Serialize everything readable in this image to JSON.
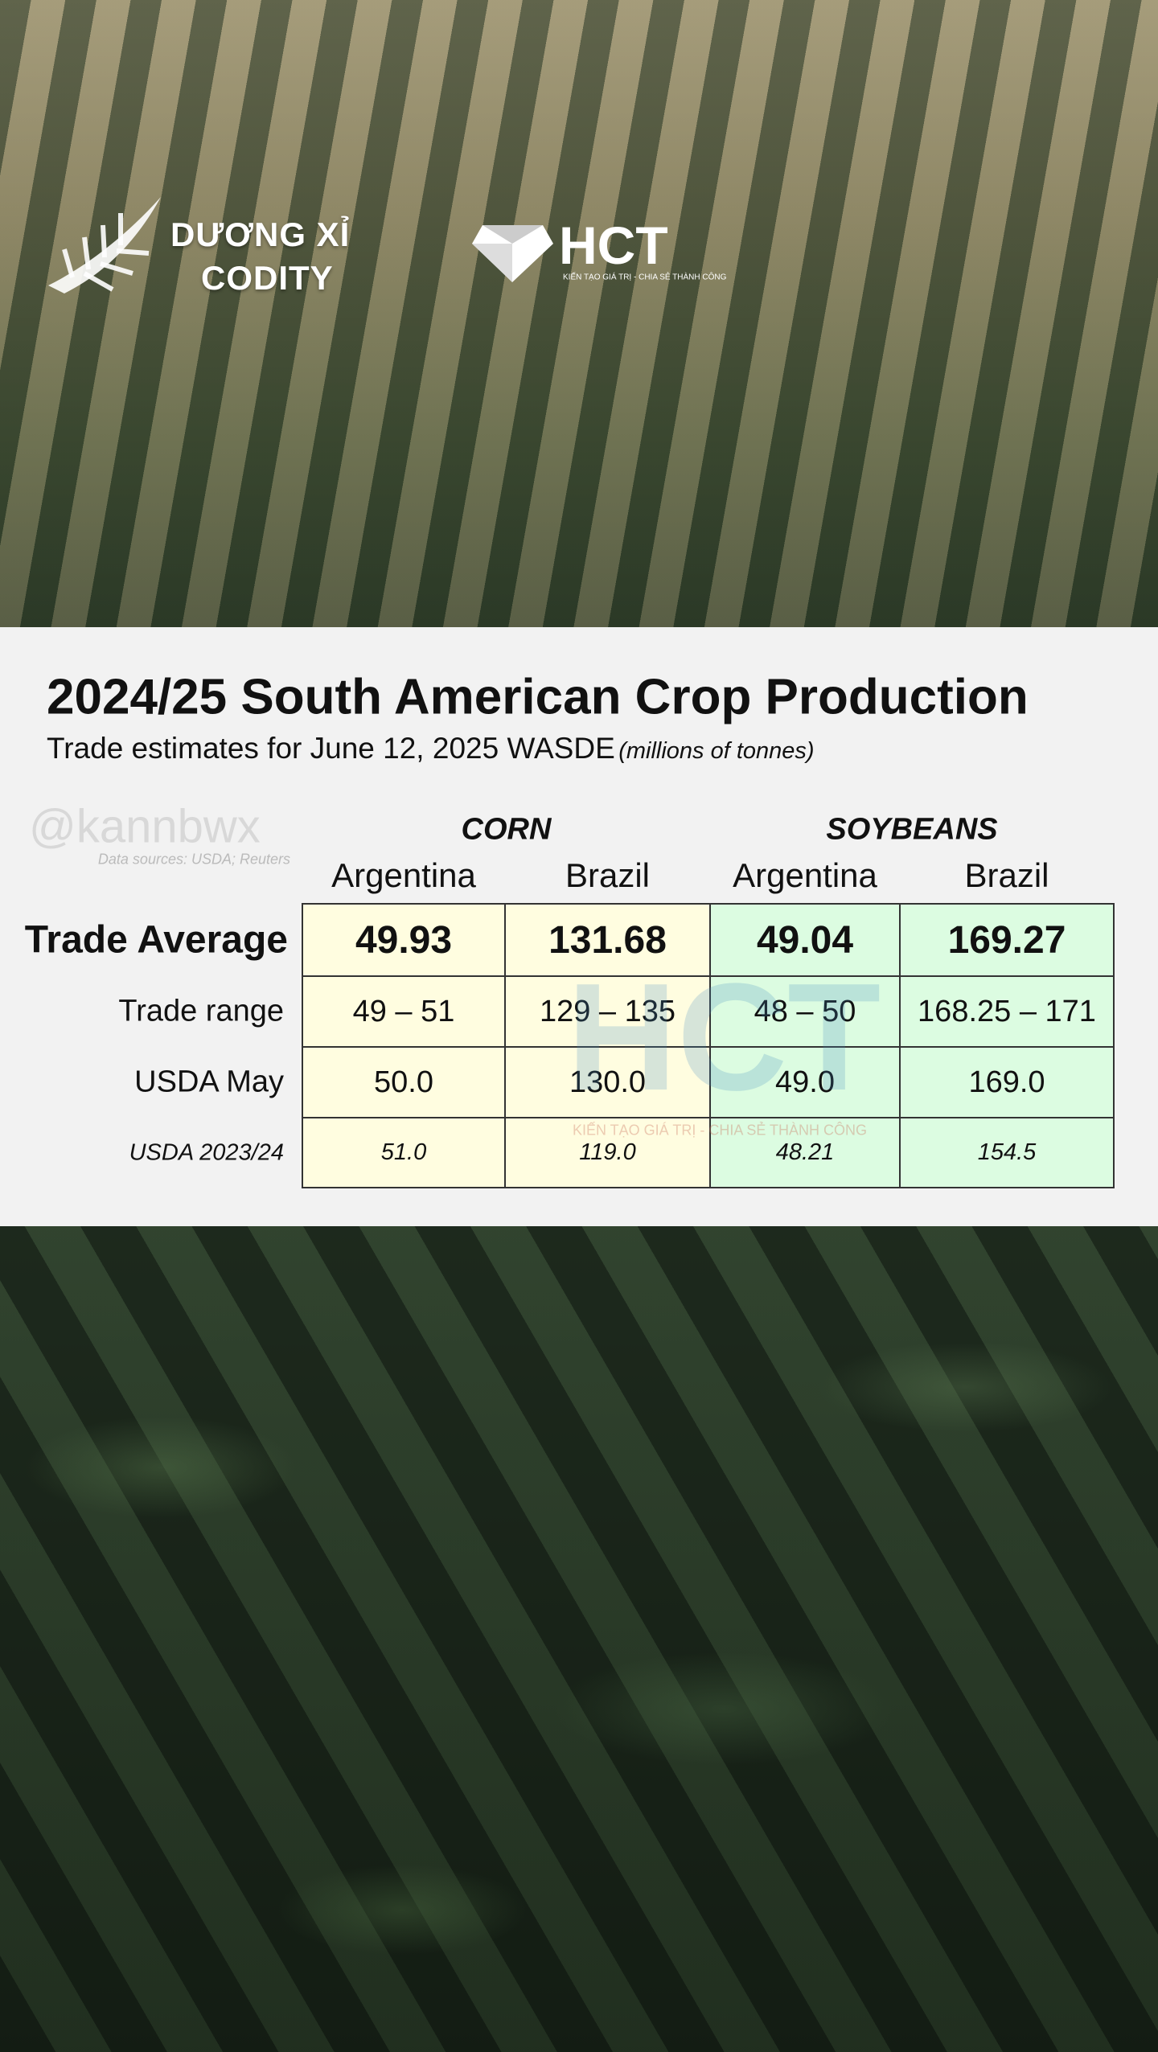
{
  "logo_left": {
    "line1": "DƯƠNG XỈ",
    "line2": "CODITY"
  },
  "logo_right": {
    "name": "HCT",
    "tagline": "KIẾN TẠO GIÁ TRỊ - CHIA SẺ THÀNH CÔNG"
  },
  "table_card": {
    "title": "2024/25 South American Crop Production",
    "subtitle": "Trade estimates for June 12, 2025 WASDE",
    "units": "(millions of tonnes)",
    "handle": "@kannbwx",
    "source": "Data sources: USDA; Reuters",
    "groups": [
      {
        "name": "CORN",
        "columns": [
          "Argentina",
          "Brazil"
        ]
      },
      {
        "name": "SOYBEANS",
        "columns": [
          "Argentina",
          "Brazil"
        ]
      }
    ],
    "rows": [
      {
        "label": "Trade Average",
        "cells": [
          "49.93",
          "131.68",
          "49.04",
          "169.27"
        ]
      },
      {
        "label": "Trade range",
        "cells": [
          "49 – 51",
          "129 – 135",
          "48 – 50",
          "168.25 – 171"
        ]
      },
      {
        "label": "USDA May",
        "cells": [
          "50.0",
          "130.0",
          "49.0",
          "169.0"
        ]
      },
      {
        "label": "USDA 2023/24",
        "cells": [
          "51.0",
          "119.0",
          "48.21",
          "154.5"
        ]
      }
    ],
    "watermark": {
      "name": "HCT",
      "tagline": "KIẾN TẠO GIÁ TRỊ - CHIA SẺ THÀNH CÔNG"
    }
  }
}
